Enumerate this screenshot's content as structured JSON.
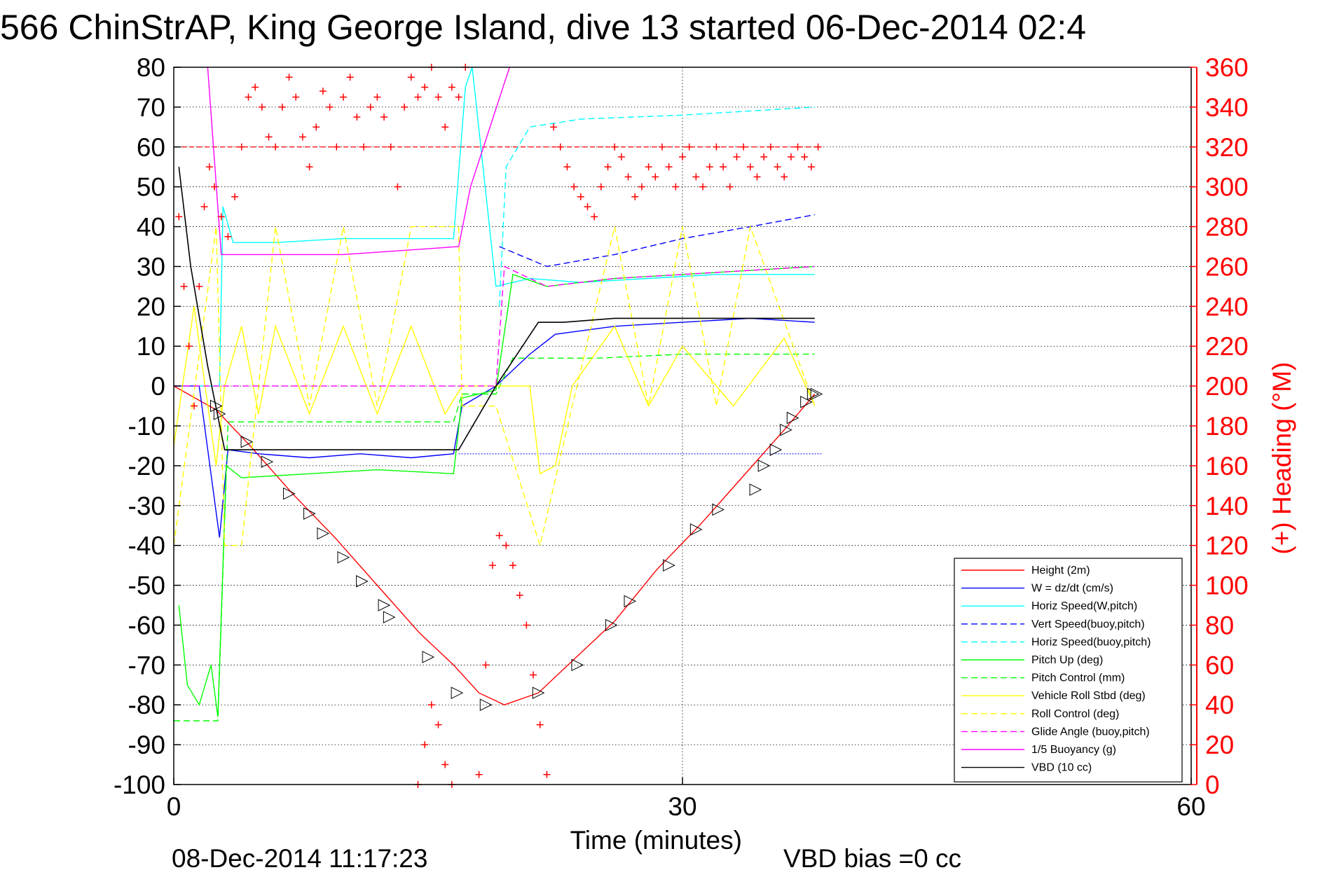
{
  "title": "566 ChinStrAP, King George Island, dive 13 started 06-Dec-2014 02:4",
  "footer": {
    "timestamp": "08-Dec-2014 11:17:23",
    "vbd_bias": "VBD bias =0 cc"
  },
  "colors": {
    "axis": "#000000",
    "right_axis": "#ff0000",
    "grid": "#000000"
  },
  "chart_data": {
    "type": "line",
    "title": "566 ChinStrAP, King George Island, dive 13 started 06-Dec-2014 02:4",
    "xlabel": "Time (minutes)",
    "ylabel": "",
    "y2label": "(+) Heading (°M)",
    "xlim": [
      0,
      60
    ],
    "ylim": [
      -100,
      80
    ],
    "y2lim": [
      0,
      360
    ],
    "xticks": [
      "0",
      "30",
      "60"
    ],
    "yticks": [
      "80",
      "70",
      "60",
      "50",
      "40",
      "30",
      "20",
      "10",
      "0",
      "-10",
      "-20",
      "-30",
      "-40",
      "-50",
      "-60",
      "-70",
      "-80",
      "-90",
      "-100"
    ],
    "y2ticks": [
      "360",
      "340",
      "320",
      "300",
      "280",
      "260",
      "240",
      "220",
      "200",
      "180",
      "160",
      "140",
      "120",
      "100",
      "80",
      "60",
      "40",
      "20",
      "0"
    ],
    "grid": true,
    "legend_position": "bottom-right",
    "reference_lines": {
      "heading_target_deg": 320,
      "vbd_bias_level": -17
    },
    "series": [
      {
        "name": "Height (2m)",
        "color": "#ff0000",
        "style": "solid",
        "x": [
          0,
          2.5,
          4.5,
          7,
          9.5,
          12,
          14.5,
          16.5,
          18,
          19.5,
          21.5,
          23.5,
          26,
          28.5,
          31,
          33.5,
          36,
          37.8
        ],
        "y": [
          0,
          -6,
          -15,
          -27,
          -38,
          -50,
          -62,
          -70,
          -77,
          -80,
          -77,
          -69,
          -59,
          -46,
          -35,
          -23,
          -11,
          -2
        ]
      },
      {
        "name": "W = dz/dt (cm/s)",
        "color": "#0000ff",
        "style": "solid",
        "x": [
          0,
          1.5,
          2.7,
          3.2,
          5,
          8,
          11,
          14,
          16.5,
          17,
          19,
          21,
          22.5,
          26,
          30,
          34,
          37.8
        ],
        "y": [
          0,
          0,
          -38,
          -16,
          -17,
          -18,
          -17,
          -18,
          -17,
          -5,
          0,
          8,
          13,
          15,
          16,
          17,
          16
        ]
      },
      {
        "name": "Horiz Speed(W,pitch)",
        "color": "#00ffff",
        "style": "solid",
        "x": [
          1.5,
          2.7,
          2.9,
          3.5,
          6,
          10,
          14,
          16.5,
          17.2,
          17.6,
          19,
          21,
          24,
          28,
          32,
          37.8
        ],
        "y": [
          0,
          0,
          45,
          36,
          36,
          37,
          37,
          37,
          75,
          80,
          25,
          27,
          26,
          27,
          28,
          28
        ]
      },
      {
        "name": "Vert Speed(buoy,pitch)",
        "color": "#0000ff",
        "style": "dashed",
        "x": [
          19.2,
          22,
          26,
          30,
          34,
          37.8
        ],
        "y": [
          35,
          30,
          33,
          37,
          40,
          43
        ]
      },
      {
        "name": "Horiz Speed(buoy,pitch)",
        "color": "#00ffff",
        "style": "dashed",
        "x": [
          19.2,
          19.6,
          21,
          24,
          30,
          37.8
        ],
        "y": [
          20,
          55,
          65,
          67,
          68,
          70
        ]
      },
      {
        "name": "Pitch Up (deg)",
        "color": "#00ff00",
        "style": "solid",
        "x": [
          0.3,
          0.8,
          1.5,
          2.2,
          2.6,
          3.1,
          4,
          8,
          12,
          16.5,
          17,
          19,
          20,
          22,
          26,
          30,
          34,
          37.8
        ],
        "y": [
          -55,
          -75,
          -80,
          -70,
          -83,
          -20,
          -23,
          -22,
          -21,
          -22,
          -3,
          -1,
          28,
          25,
          27,
          28,
          29,
          30
        ]
      },
      {
        "name": "Pitch Control (mm)",
        "color": "#00ff00",
        "style": "dashed",
        "x": [
          0,
          2.6,
          3.2,
          8,
          16.5,
          17,
          19,
          20,
          25,
          30,
          37.8
        ],
        "y": [
          -84,
          -84,
          -9,
          -9,
          -9,
          -2,
          -2,
          7,
          7,
          8,
          8
        ]
      },
      {
        "name": "Vehicle Roll Stbd (deg)",
        "color": "#ffff00",
        "style": "solid",
        "x": [
          0,
          1.2,
          2.5,
          3,
          4,
          5,
          6,
          8,
          10,
          12,
          14,
          16,
          17,
          19,
          21,
          21.6,
          22.5,
          23.5,
          26,
          28,
          30,
          33,
          36,
          37.8
        ],
        "y": [
          -15,
          20,
          -20,
          0,
          15,
          -7,
          15,
          -7,
          15,
          -7,
          15,
          -7,
          0,
          0,
          0,
          -22,
          -20,
          0,
          15,
          -5,
          10,
          -5,
          12,
          -5
        ]
      },
      {
        "name": "Roll Control (deg)",
        "color": "#ffff00",
        "style": "dashed",
        "x": [
          0,
          2.5,
          3,
          4,
          6,
          8,
          10,
          12,
          14,
          16.8,
          17,
          19,
          21.6,
          23.5,
          26,
          28,
          30,
          32,
          34,
          37.8
        ],
        "y": [
          -40,
          40,
          -40,
          -40,
          40,
          -5,
          40,
          -5,
          40,
          40,
          -5,
          -5,
          -40,
          -5,
          40,
          -5,
          40,
          -5,
          40,
          -5
        ]
      },
      {
        "name": "Glide Angle (buoy,pitch)",
        "color": "#ff00ff",
        "style": "dashed",
        "x": [
          0,
          19,
          19.5,
          22,
          26,
          30,
          37.8
        ],
        "y": [
          0,
          0,
          30,
          25,
          27,
          28,
          30
        ]
      },
      {
        "name": "1/5 Buoyancy (g)",
        "color": "#ff00ff",
        "style": "solid",
        "x": [
          2,
          2.8,
          5,
          10,
          16.8,
          17.5,
          19.8
        ],
        "y": [
          80,
          33,
          33,
          33,
          35,
          50,
          80
        ]
      },
      {
        "name": "VBD (10 cc)",
        "color": "#000000",
        "style": "solid",
        "x": [
          0.3,
          1,
          2,
          3,
          16.8,
          19,
          21.5,
          23,
          26,
          30,
          37.8
        ],
        "y": [
          55,
          30,
          5,
          -16,
          -16,
          0,
          16,
          16,
          17,
          17,
          17
        ]
      }
    ],
    "heading": {
      "name": "(+) Heading (°M)",
      "color": "#ff0000",
      "marker": "+",
      "x": [
        0.3,
        0.6,
        0.9,
        1.2,
        1.5,
        1.8,
        2.1,
        2.4,
        2.8,
        3.2,
        3.6,
        4.0,
        4.4,
        4.8,
        5.2,
        5.6,
        6.0,
        6.4,
        6.8,
        7.2,
        7.6,
        8.0,
        8.4,
        8.8,
        9.2,
        9.6,
        10.0,
        10.4,
        10.8,
        11.2,
        11.6,
        12.0,
        12.4,
        12.8,
        13.2,
        13.6,
        14.0,
        14.4,
        14.8,
        15.2,
        15.6,
        16.0,
        16.4,
        16.8,
        17.2
      ],
      "y": [
        285,
        250,
        220,
        190,
        250,
        290,
        310,
        300,
        285,
        275,
        295,
        320,
        345,
        350,
        340,
        325,
        320,
        340,
        355,
        345,
        325,
        310,
        330,
        348,
        340,
        320,
        345,
        355,
        335,
        320,
        340,
        345,
        335,
        320,
        300,
        340,
        355,
        345,
        350,
        360,
        345,
        330,
        350,
        345,
        360
      ],
      "x2": [
        14.4,
        14.8,
        15.2,
        15.6,
        16.0,
        16.4,
        18.0,
        18.4,
        18.8,
        19.2,
        19.6,
        20.0,
        20.4,
        20.8,
        21.2,
        21.6,
        22.0,
        22.4,
        22.8,
        23.2,
        23.6,
        24.0,
        24.4,
        24.8,
        25.2,
        25.6,
        26.0,
        26.4,
        26.8,
        27.2,
        27.6,
        28.0,
        28.4,
        28.8,
        29.2,
        29.6,
        30.0,
        30.4,
        30.8,
        31.2,
        31.6,
        32.0,
        32.4,
        32.8,
        33.2,
        33.6,
        34.0,
        34.4,
        34.8,
        35.2,
        35.6,
        36.0,
        36.4,
        36.8,
        37.2,
        37.6,
        38.0
      ],
      "y2": [
        0,
        20,
        40,
        30,
        10,
        0,
        5,
        60,
        110,
        125,
        120,
        110,
        95,
        80,
        55,
        30,
        5,
        330,
        320,
        310,
        300,
        295,
        290,
        285,
        300,
        310,
        320,
        315,
        305,
        295,
        300,
        310,
        305,
        320,
        310,
        300,
        315,
        320,
        305,
        300,
        310,
        320,
        310,
        300,
        315,
        320,
        310,
        305,
        315,
        320,
        310,
        305,
        315,
        320,
        315,
        310,
        320
      ]
    },
    "depth_markers": {
      "x": [
        2.5,
        2.7,
        4.3,
        5.5,
        6.8,
        8.0,
        8.8,
        10.0,
        11.1,
        12.4,
        12.7,
        15.0,
        16.7,
        18.4,
        21.5,
        23.8,
        25.8,
        26.9,
        29.2,
        30.8,
        32.1,
        34.3,
        34.8,
        35.5,
        36.1,
        36.5,
        37.3,
        37.7,
        37.9
      ],
      "y": [
        -5,
        -7,
        -14,
        -19,
        -27,
        -32,
        -37,
        -43,
        -49,
        -55,
        -58,
        -68,
        -77,
        -80,
        -77,
        -70,
        -60,
        -54,
        -45,
        -36,
        -31,
        -26,
        -20,
        -16,
        -11,
        -8,
        -4,
        -2,
        -2
      ]
    }
  }
}
